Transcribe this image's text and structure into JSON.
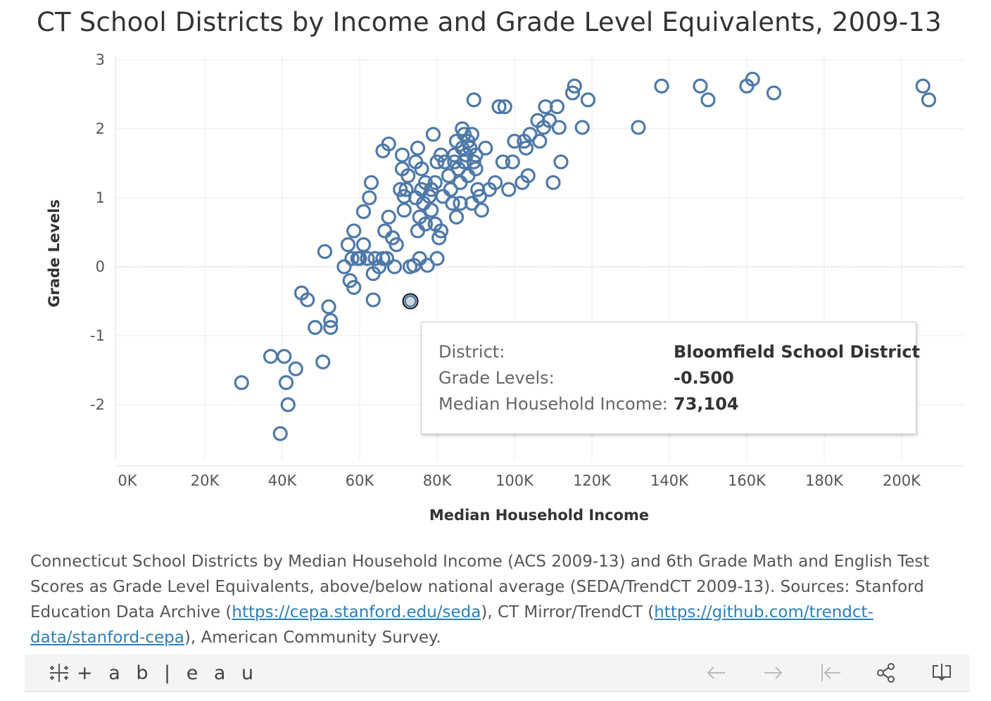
{
  "title": "CT School Districts by Income and Grade Level Equivalents, 2009-13",
  "chart_data": {
    "type": "scatter",
    "title": "CT School Districts by Income and Grade Level Equivalents, 2009-13",
    "xlabel": "Median Household Income",
    "ylabel": "Grade Levels",
    "xlim": [
      0,
      210000
    ],
    "ylim": [
      -2.75,
      3
    ],
    "x_ticks": [
      "0K",
      "20K",
      "40K",
      "60K",
      "80K",
      "100K",
      "120K",
      "140K",
      "160K",
      "180K",
      "200K"
    ],
    "y_ticks": [
      "3",
      "2",
      "1",
      "0",
      "-1",
      "-2"
    ],
    "grid": true,
    "zero_line": "dotted",
    "marker": "hollow-circle",
    "color": "#4e79a7",
    "points": [
      [
        29500,
        -1.68
      ],
      [
        37000,
        -1.3
      ],
      [
        39500,
        -2.42
      ],
      [
        40500,
        -1.3
      ],
      [
        41000,
        -1.68
      ],
      [
        41500,
        -2.0
      ],
      [
        43500,
        -1.48
      ],
      [
        45000,
        -0.38
      ],
      [
        46500,
        -0.48
      ],
      [
        48500,
        -0.88
      ],
      [
        50500,
        -1.38
      ],
      [
        51000,
        0.22
      ],
      [
        52000,
        -0.58
      ],
      [
        52500,
        -0.78
      ],
      [
        52500,
        -0.88
      ],
      [
        56000,
        0.0
      ],
      [
        57000,
        0.32
      ],
      [
        57500,
        -0.2
      ],
      [
        58000,
        0.12
      ],
      [
        58500,
        -0.3
      ],
      [
        58500,
        0.52
      ],
      [
        59500,
        0.12
      ],
      [
        60000,
        0.12
      ],
      [
        61000,
        0.32
      ],
      [
        61000,
        0.8
      ],
      [
        62000,
        0.12
      ],
      [
        62500,
        1.0
      ],
      [
        63000,
        1.22
      ],
      [
        63500,
        -0.1
      ],
      [
        63500,
        -0.48
      ],
      [
        64000,
        0.12
      ],
      [
        65000,
        0.0
      ],
      [
        66000,
        0.12
      ],
      [
        66000,
        1.68
      ],
      [
        66500,
        0.52
      ],
      [
        67000,
        0.12
      ],
      [
        67500,
        0.72
      ],
      [
        67500,
        1.78
      ],
      [
        68500,
        0.42
      ],
      [
        69000,
        0.0
      ],
      [
        69500,
        0.32
      ],
      [
        70500,
        1.12
      ],
      [
        71000,
        1.62
      ],
      [
        71000,
        1.42
      ],
      [
        71500,
        1.02
      ],
      [
        71500,
        0.82
      ],
      [
        72000,
        1.12
      ],
      [
        72500,
        1.32
      ],
      [
        73104,
        -0.5
      ],
      [
        73000,
        0.0
      ],
      [
        74000,
        0.02
      ],
      [
        74500,
        1.0
      ],
      [
        74500,
        1.52
      ],
      [
        75000,
        1.72
      ],
      [
        75000,
        0.52
      ],
      [
        75500,
        0.12
      ],
      [
        75500,
        0.72
      ],
      [
        76000,
        1.42
      ],
      [
        76000,
        1.12
      ],
      [
        76500,
        0.92
      ],
      [
        77000,
        1.22
      ],
      [
        77000,
        0.62
      ],
      [
        77500,
        0.02
      ],
      [
        78000,
        1.02
      ],
      [
        78500,
        1.12
      ],
      [
        78500,
        0.82
      ],
      [
        79000,
        1.92
      ],
      [
        79500,
        1.22
      ],
      [
        79500,
        0.62
      ],
      [
        80000,
        1.52
      ],
      [
        80000,
        0.12
      ],
      [
        80500,
        0.42
      ],
      [
        81000,
        0.52
      ],
      [
        81000,
        1.62
      ],
      [
        81500,
        1.02
      ],
      [
        82000,
        1.52
      ],
      [
        83000,
        1.32
      ],
      [
        83500,
        1.12
      ],
      [
        84000,
        0.92
      ],
      [
        84500,
        1.62
      ],
      [
        84500,
        1.52
      ],
      [
        85000,
        1.82
      ],
      [
        85000,
        0.72
      ],
      [
        85500,
        1.42
      ],
      [
        86000,
        1.22
      ],
      [
        86000,
        0.92
      ],
      [
        86500,
        2.0
      ],
      [
        86500,
        1.72
      ],
      [
        87000,
        1.92
      ],
      [
        87000,
        1.52
      ],
      [
        87500,
        1.62
      ],
      [
        88000,
        1.32
      ],
      [
        88000,
        1.82
      ],
      [
        88500,
        1.72
      ],
      [
        89000,
        0.92
      ],
      [
        89000,
        1.92
      ],
      [
        89500,
        2.42
      ],
      [
        89500,
        1.52
      ],
      [
        90000,
        1.62
      ],
      [
        90000,
        1.42
      ],
      [
        90500,
        1.12
      ],
      [
        91000,
        1.02
      ],
      [
        91500,
        0.82
      ],
      [
        92500,
        1.72
      ],
      [
        93500,
        1.12
      ],
      [
        95000,
        1.22
      ],
      [
        96000,
        2.32
      ],
      [
        97000,
        1.52
      ],
      [
        97500,
        2.32
      ],
      [
        98500,
        1.12
      ],
      [
        99500,
        1.52
      ],
      [
        100000,
        1.82
      ],
      [
        102000,
        1.22
      ],
      [
        102500,
        1.82
      ],
      [
        103000,
        1.72
      ],
      [
        103500,
        1.32
      ],
      [
        104000,
        1.92
      ],
      [
        106000,
        2.12
      ],
      [
        106500,
        1.82
      ],
      [
        107500,
        2.02
      ],
      [
        108000,
        2.32
      ],
      [
        109000,
        2.12
      ],
      [
        110000,
        1.22
      ],
      [
        111000,
        2.32
      ],
      [
        111500,
        2.02
      ],
      [
        112000,
        1.52
      ],
      [
        115000,
        2.52
      ],
      [
        115500,
        2.62
      ],
      [
        117500,
        2.02
      ],
      [
        119000,
        2.42
      ],
      [
        132000,
        2.02
      ],
      [
        138000,
        2.62
      ],
      [
        148000,
        2.62
      ],
      [
        150000,
        2.42
      ],
      [
        160000,
        2.62
      ],
      [
        161500,
        2.72
      ],
      [
        167000,
        2.52
      ],
      [
        205500,
        2.62
      ],
      [
        207000,
        2.42
      ]
    ],
    "selected_point": [
      73104,
      -0.5
    ]
  },
  "tooltip": {
    "rows": [
      {
        "label": "District:",
        "value": "Bloomfield School District"
      },
      {
        "label": "Grade Levels:",
        "value": "-0.500"
      },
      {
        "label": "Median Household Income:",
        "value": "73,104"
      }
    ]
  },
  "caption": {
    "text1": "Connecticut School Districts by Median Household Income (ACS 2009-13) and 6th Grade Math and English Test Scores as Grade Level Equivalents, above/below national average (SEDA/TrendCT 2009-13). Sources: Stanford Education Data Archive (",
    "link1": "https://cepa.stanford.edu/seda",
    "text2": "), CT Mirror/TrendCT (",
    "link2": "https://github.com/trendct-data/stanford-cepa",
    "text3": "), American Community Survey."
  },
  "footer": {
    "logo_text": "+ a b | e a u",
    "logo_icon": "tableau-logo-icon",
    "buttons": [
      "undo-arrow-icon",
      "redo-arrow-icon",
      "revert-icon",
      "share-icon",
      "download-icon"
    ]
  }
}
